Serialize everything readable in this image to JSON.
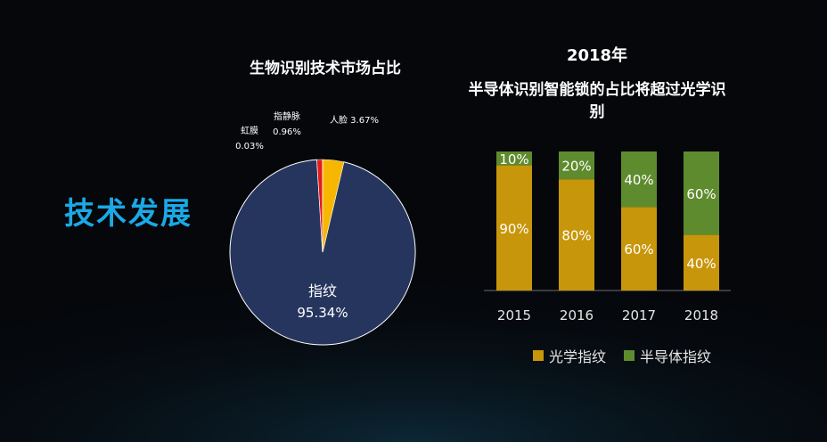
{
  "section": {
    "title": "技术发展"
  },
  "colors": {
    "bg": "#05070b",
    "title_blue": "#1aa9e6",
    "pie_main": "#26355e",
    "pie_yellow": "#f7b600",
    "pie_red": "#e31b1b",
    "optical": "#c8960b",
    "semi": "#5f8b2f"
  },
  "chart_data": [
    {
      "type": "pie",
      "title": "生物识别技术市场占比",
      "slices": [
        {
          "name": "指纹",
          "value": 95.34,
          "label": "95.34%"
        },
        {
          "name": "人脸",
          "value": 3.67,
          "label": "3.67%"
        },
        {
          "name": "指静脉",
          "value": 0.96,
          "label": "0.96%"
        },
        {
          "name": "虹膜",
          "value": 0.03,
          "label": "0.03%"
        }
      ]
    },
    {
      "type": "bar",
      "stacked": true,
      "title": "2018年",
      "subtitle": "半导体识别智能锁的占比将超过光学识别",
      "categories": [
        "2015",
        "2016",
        "2017",
        "2018"
      ],
      "series": [
        {
          "name": "光学指纹",
          "values": [
            90,
            80,
            60,
            40
          ],
          "labels": [
            "90%",
            "80%",
            "60%",
            "40%"
          ]
        },
        {
          "name": "半导体指纹",
          "values": [
            10,
            20,
            40,
            60
          ],
          "labels": [
            "10%",
            "20%",
            "40%",
            "60%"
          ]
        }
      ],
      "ylim": [
        0,
        100
      ],
      "legend": "bottom"
    }
  ]
}
